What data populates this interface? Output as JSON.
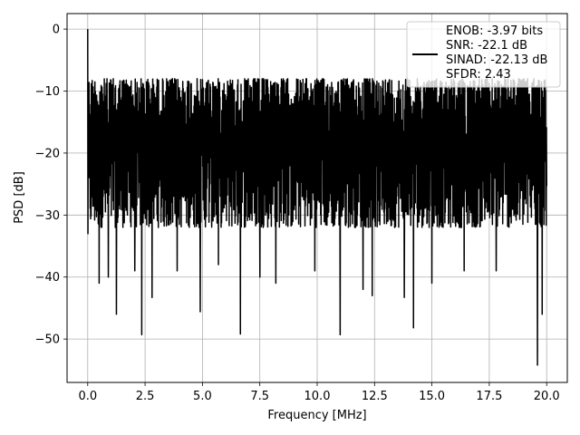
{
  "chart_data": {
    "type": "line",
    "title": "",
    "xlabel": "Frequency [MHz]",
    "ylabel": "PSD [dB]",
    "xlim": [
      -0.9,
      20.9
    ],
    "ylim": [
      -57,
      2.5
    ],
    "xticks": [
      0.0,
      2.5,
      5.0,
      7.5,
      10.0,
      12.5,
      15.0,
      17.5,
      20.0
    ],
    "xtick_labels": [
      "0.0",
      "2.5",
      "5.0",
      "7.5",
      "10.0",
      "12.5",
      "15.0",
      "17.5",
      "20.0"
    ],
    "yticks": [
      0,
      -10,
      -20,
      -30,
      -40,
      -50
    ],
    "ytick_labels": [
      "0",
      "−10",
      "−20",
      "−30",
      "−40",
      "−50"
    ],
    "grid": true,
    "legend_position": "upper right",
    "legend_entries": [
      "ENOB: -3.97 bits",
      "SNR: -22.1 dB",
      "SINAD: -22.13 dB",
      "SFDR: 2.43"
    ],
    "line_color": "#000000",
    "series": [
      {
        "x_start": 0.0,
        "x_end": 20.0,
        "num_points": 2048,
        "baseline_db": -20,
        "typical_max_db": -8,
        "typical_min_db": -32,
        "peak": {
          "x": 0.0,
          "y": 0.0
        },
        "notable_dips": [
          {
            "x": 0.5,
            "y": -41
          },
          {
            "x": 0.9,
            "y": -40
          },
          {
            "x": 1.25,
            "y": -46
          },
          {
            "x": 2.05,
            "y": -39
          },
          {
            "x": 2.35,
            "y": -49.3
          },
          {
            "x": 2.8,
            "y": -43.3
          },
          {
            "x": 3.9,
            "y": -39
          },
          {
            "x": 4.9,
            "y": -45.6
          },
          {
            "x": 5.7,
            "y": -38
          },
          {
            "x": 6.65,
            "y": -49.2
          },
          {
            "x": 7.5,
            "y": -40
          },
          {
            "x": 8.2,
            "y": -41
          },
          {
            "x": 9.9,
            "y": -39
          },
          {
            "x": 11.0,
            "y": -49.3
          },
          {
            "x": 12.0,
            "y": -42
          },
          {
            "x": 12.4,
            "y": -43
          },
          {
            "x": 13.8,
            "y": -43.3
          },
          {
            "x": 14.2,
            "y": -48.2
          },
          {
            "x": 15.0,
            "y": -41
          },
          {
            "x": 16.4,
            "y": -39
          },
          {
            "x": 17.8,
            "y": -39
          },
          {
            "x": 19.6,
            "y": -54.2
          },
          {
            "x": 19.8,
            "y": -46
          }
        ]
      }
    ]
  }
}
